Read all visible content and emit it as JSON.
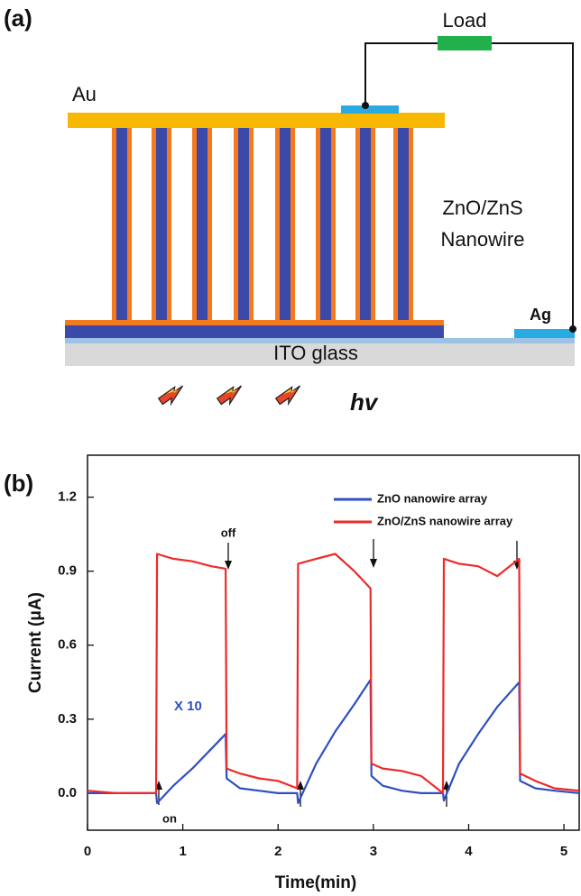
{
  "panel_a": {
    "label": "(a)",
    "load": "Load",
    "au": "Au",
    "nanowire": [
      "ZnO/ZnS",
      "Nanowire"
    ],
    "ag": "Ag",
    "ito": "ITO glass",
    "light": "hv"
  },
  "chart_data": {
    "type": "line",
    "panel_label": "(b)",
    "x_label": "Time(min)",
    "y_label": "Current (μA)",
    "x": [
      0,
      0.3,
      0.6,
      0.72,
      0.73,
      0.9,
      1.1,
      1.3,
      1.45,
      1.46,
      1.6,
      1.8,
      2.0,
      2.2,
      2.21,
      2.4,
      2.6,
      2.8,
      2.97,
      2.98,
      3.1,
      3.3,
      3.5,
      3.73,
      3.74,
      3.9,
      4.1,
      4.3,
      4.53,
      4.54,
      4.7,
      4.9,
      5.16
    ],
    "series": [
      {
        "name": "ZnO nanowire array",
        "color": "#2f4fc0",
        "values": [
          0.0,
          0.0,
          0.0,
          0.0,
          -0.04,
          0.03,
          0.1,
          0.18,
          0.24,
          0.06,
          0.02,
          0.01,
          0.0,
          0.0,
          -0.04,
          0.12,
          0.25,
          0.36,
          0.46,
          0.07,
          0.03,
          0.01,
          0.0,
          0.0,
          -0.03,
          0.12,
          0.24,
          0.35,
          0.45,
          0.05,
          0.02,
          0.01,
          0.0
        ]
      },
      {
        "name": "ZnO/ZnS nanowire array",
        "color": "#ee2a2a",
        "values": [
          0.01,
          0.0,
          0.0,
          0.0,
          0.97,
          0.95,
          0.94,
          0.92,
          0.91,
          0.1,
          0.08,
          0.06,
          0.05,
          0.02,
          0.93,
          0.95,
          0.97,
          0.9,
          0.83,
          0.12,
          0.1,
          0.09,
          0.07,
          0.0,
          0.95,
          0.93,
          0.92,
          0.88,
          0.95,
          0.08,
          0.05,
          0.02,
          0.01
        ]
      }
    ],
    "xlim": [
      0,
      5.16
    ],
    "ylim": [
      -0.15,
      1.37
    ],
    "xticks": [
      0,
      1,
      2,
      3,
      4,
      5
    ],
    "yticks": [
      {
        "value": 0,
        "label": "0.0"
      },
      0.3,
      0.6,
      0.9,
      1.2
    ],
    "legend": "upper right",
    "annotations": [
      "off",
      "on",
      "X 10"
    ]
  }
}
